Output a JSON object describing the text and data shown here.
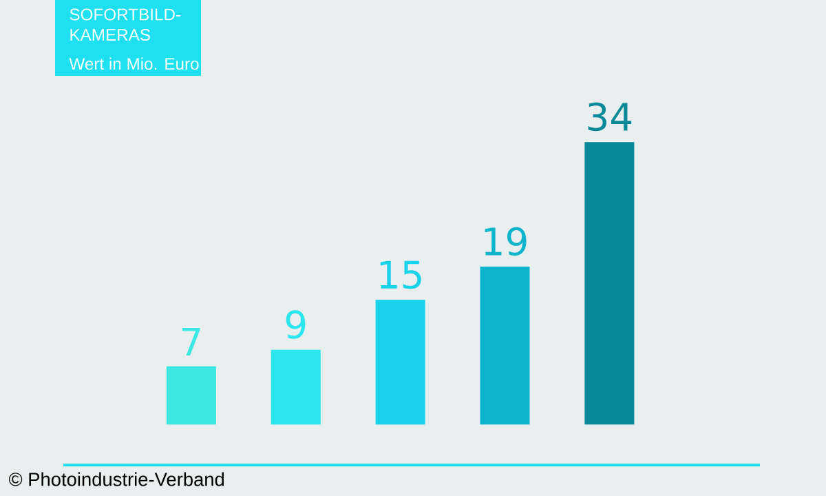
{
  "chart_data": {
    "type": "bar",
    "title": "SOFORTBILD-KAMERAS",
    "subtitle": "Wert in Mio. Euro",
    "categories": [
      null,
      null,
      null,
      null,
      null
    ],
    "values": [
      7,
      9,
      15,
      19,
      34
    ],
    "colors": [
      "#3ee8e2",
      "#2ae6ee",
      "#18d2ea",
      "#0eb4cc",
      "#0a8a98"
    ],
    "data_labels": true,
    "annotations": [
      "© Photoindustrie-Verband"
    ]
  }
}
